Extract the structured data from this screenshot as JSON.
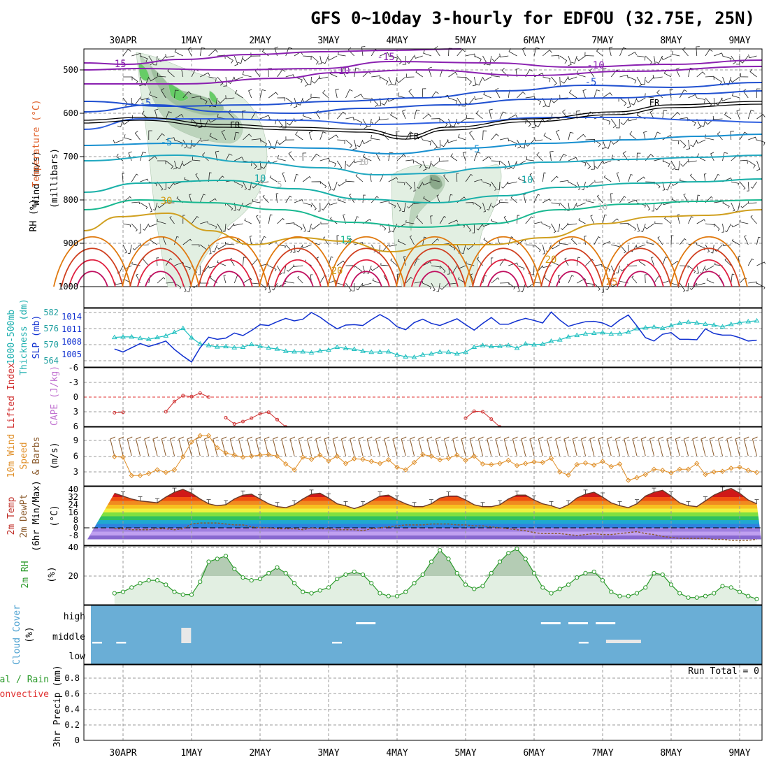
{
  "header": {
    "title": "GFS 0~10day 3-hourly for EDFOU (32.75E, 25N)"
  },
  "time_axis": {
    "dates": [
      "30APR",
      "1MAY",
      "2MAY",
      "3MAY",
      "4MAY",
      "5MAY",
      "6MAY",
      "7MAY",
      "8MAY",
      "9MAY"
    ]
  },
  "colors": {
    "rh_fill": "#c8dcc8",
    "temp_warm": "#e0202a",
    "temp_cool": "#2050d0",
    "thickness": "#20c0c0",
    "slp": "#1030d0",
    "lifted_index": "#d03030",
    "wind_speed": "#e0902a",
    "rh2m": "#2a9a2a",
    "cloud_bg": "#6aaed6",
    "dewpoint": "#8b5a2b"
  },
  "panels": {
    "upper_air": {
      "y_labels": [
        "Wind (m/s)",
        "Temperature (°C)",
        "RH (%)",
        "(millibars)"
      ],
      "pressure_ticks": [
        "500",
        "600",
        "700",
        "800",
        "900",
        "1000"
      ],
      "contour_labels": [
        "-15",
        "-15",
        "-10",
        "-10",
        "-5",
        "-5",
        "-5",
        "-5",
        "5",
        "5",
        "10",
        "10",
        "10",
        "10",
        "15",
        "20",
        "20",
        "25",
        "30",
        "FR",
        "FR",
        "FR"
      ]
    },
    "thickness_slp": {
      "y_labels": [
        "1000-500mb",
        "Thickness (dm)",
        "SLP (mb)"
      ],
      "thickness_ticks": [
        "582",
        "576",
        "570",
        "564"
      ],
      "slp_ticks": [
        "1014",
        "1011",
        "1008",
        "1005"
      ]
    },
    "stability": {
      "y_labels": [
        "Lifted Index",
        "CAPE (J/kg)"
      ],
      "ticks": [
        "-6",
        "-3",
        "0",
        "3",
        "6"
      ]
    },
    "wind10m": {
      "y_labels": [
        "10m Wind",
        "Speed",
        "& Barbs",
        "(m/s)"
      ],
      "ticks": [
        "9",
        "6",
        "3"
      ]
    },
    "temp2m": {
      "y_labels": [
        "2m Temp",
        "2m DewPt",
        "(6hr Min/Max)",
        "(°C)"
      ],
      "ticks": [
        "40",
        "32",
        "24",
        "16",
        "8",
        "0",
        "-8"
      ]
    },
    "rh2m": {
      "y_labels": [
        "2m RH",
        "(%)"
      ],
      "ticks": [
        "40",
        "20"
      ]
    },
    "cloud": {
      "y_labels": [
        "Cloud Cover",
        "(%)"
      ],
      "ticks": [
        "high",
        "middle",
        "low"
      ]
    },
    "precip": {
      "y_labels": [
        "Total / Rain",
        "Convective",
        "3hr Precip (mm)"
      ],
      "ticks": [
        "0.8",
        "0.6",
        "0.4",
        "0.2",
        "0"
      ],
      "run_total": "Run Total = 0"
    }
  },
  "chart_data": {
    "type": "line",
    "title": "GFS 0~10day 3-hourly for EDFOU (32.75E, 25N)",
    "x_start": "29APR 21Z",
    "x_step_hours": 3,
    "slp_mb": [
      1006.3,
      1005.6,
      1006.6,
      1007.6,
      1006.9,
      1007.5,
      1008.2,
      1006.2,
      1004.6,
      1003.2,
      1006.6,
      1009.1,
      1008.6,
      1008.9,
      1010.1,
      1009.5,
      1010.7,
      1012.1,
      1011.9,
      1012.8,
      1013.6,
      1013.0,
      1013.4,
      1015.0,
      1013.9,
      1012.4,
      1011.1,
      1012.0,
      1012.1,
      1011.9,
      1013.3,
      1014.5,
      1013.4,
      1011.6,
      1010.9,
      1012.6,
      1013.4,
      1012.4,
      1011.9,
      1012.7,
      1013.5,
      1012.1,
      1010.8,
      1012.4,
      1013.8,
      1012.2,
      1012.2,
      1013.0,
      1013.6,
      1013.1,
      1012.5,
      1015.1,
      1013.2,
      1011.7,
      1012.3,
      1012.8,
      1012.9,
      1012.5,
      1011.6,
      1013.2,
      1014.4,
      1011.8,
      1009.0,
      1008.2,
      1009.8,
      1010.2,
      1008.6,
      1008.6,
      1008.5,
      1011.1,
      1010.0,
      1009.6,
      1009.6,
      1009.0,
      1008.2,
      1008.4,
      1007.6,
      1006.6,
      1007.0,
      1008.2
    ],
    "thickness_dm": [
      572.7,
      572.9,
      572.9,
      572.4,
      572.0,
      572.7,
      573.3,
      574.6,
      576.1,
      572.6,
      570.3,
      569.7,
      569.2,
      569.3,
      568.9,
      569.1,
      570.1,
      569.4,
      568.8,
      568.4,
      567.6,
      567.4,
      567.4,
      567.0,
      567.7,
      568.0,
      569.1,
      568.6,
      568.3,
      567.6,
      567.2,
      567.3,
      567.4,
      566.2,
      565.5,
      565.3,
      566.2,
      566.6,
      567.3,
      567.2,
      566.6,
      567.2,
      569.1,
      569.7,
      569.3,
      569.4,
      569.7,
      568.7,
      570.3,
      570.0,
      570.2,
      571.3,
      571.8,
      572.9,
      573.5,
      574.0,
      574.3,
      574.5,
      574.0,
      574.1,
      574.7,
      576.0,
      576.3,
      576.6,
      576.1,
      577.1,
      578.0,
      578.4,
      578.1,
      577.7,
      577.3,
      576.7,
      577.6,
      578.2,
      578.6,
      578.9,
      578.6,
      578.6,
      578.4,
      578.1
    ],
    "wind10m_ms": [
      5.9,
      5.8,
      2.3,
      2.3,
      2.7,
      3.4,
      2.9,
      3.4,
      5.9,
      8.7,
      9.9,
      9.9,
      7.6,
      6.6,
      6.2,
      5.8,
      6.0,
      6.2,
      6.3,
      6.0,
      4.5,
      3.4,
      5.8,
      5.4,
      6.2,
      5.1,
      6.0,
      4.6,
      5.5,
      5.4,
      5.0,
      4.6,
      5.3,
      3.9,
      3.4,
      4.8,
      6.3,
      6.0,
      5.3,
      5.6,
      6.2,
      5.2,
      6.0,
      4.5,
      4.4,
      4.6,
      5.2,
      4.2,
      4.6,
      4.9,
      4.8,
      5.6,
      3.0,
      2.4,
      4.4,
      4.7,
      4.3,
      5.0,
      4.0,
      4.5,
      1.4,
      1.9,
      2.5,
      3.5,
      3.3,
      2.8,
      3.5,
      3.5,
      4.6,
      2.5,
      3.0,
      3.1,
      3.7,
      3.9,
      3.3,
      2.9,
      2.8,
      2.4,
      2.3,
      3.0
    ],
    "temp2m_c": [
      36,
      33,
      30,
      28,
      27,
      26,
      32,
      37,
      40,
      36,
      30,
      25,
      23,
      24,
      30,
      34,
      35,
      30,
      25,
      22,
      21,
      24,
      30,
      35,
      36,
      31,
      25,
      23,
      20,
      23,
      28,
      33,
      34,
      29,
      25,
      22,
      22,
      25,
      31,
      33,
      33,
      29,
      24,
      22,
      22,
      24,
      30,
      34,
      34,
      29,
      25,
      23,
      20,
      24,
      31,
      35,
      37,
      32,
      26,
      23,
      21,
      25,
      33,
      37,
      39,
      33,
      26,
      23,
      22,
      28,
      34,
      38,
      41,
      36,
      29,
      25,
      25,
      28,
      33,
      35
    ],
    "dewpt2m_c": [
      -1,
      -1,
      -2,
      -2,
      -2,
      -1,
      -1,
      -2,
      -1,
      4,
      5,
      5,
      5,
      4,
      3,
      3,
      1,
      0,
      0,
      -1,
      -1,
      -1,
      -2,
      0,
      -1,
      -1,
      -2,
      -2,
      -2,
      -3,
      -1,
      0,
      1,
      2,
      3,
      3,
      3,
      4,
      4,
      4,
      3,
      3,
      2,
      2,
      1,
      0,
      -1,
      -2,
      -3,
      -5,
      -6,
      -6,
      -6,
      -7,
      -8,
      -7,
      -6,
      -7,
      -7,
      -6,
      -5,
      -4,
      -6,
      -7,
      -9,
      -10,
      -11,
      -11,
      -11,
      -11,
      -12,
      -12,
      -13,
      -13,
      -13,
      -12,
      -12,
      -11,
      -11,
      -11
    ],
    "rh2m_pct": [
      8,
      9,
      12,
      15,
      17,
      17,
      14,
      9,
      7,
      7,
      16,
      30,
      32,
      34,
      25,
      19,
      17,
      18,
      22,
      26,
      22,
      15,
      9,
      8,
      10,
      12,
      18,
      21,
      23,
      21,
      15,
      8,
      6,
      6,
      9,
      15,
      21,
      30,
      38,
      32,
      22,
      14,
      11,
      13,
      22,
      30,
      36,
      39,
      32,
      22,
      12,
      8,
      11,
      14,
      19,
      22,
      23,
      17,
      9,
      6,
      6,
      8,
      12,
      22,
      21,
      14,
      8,
      5,
      5,
      6,
      8,
      13,
      12,
      9,
      6,
      4,
      4,
      6,
      8,
      9
    ],
    "lifted_index": [
      3.2,
      3.1,
      null,
      null,
      null,
      null,
      3.0,
      0.9,
      -0.3,
      -0.1,
      -0.8,
      0.0,
      null,
      4.2,
      5.5,
      5.0,
      4.3,
      3.4,
      3.1,
      4.6,
      6.1,
      null,
      null,
      null,
      null,
      null,
      null,
      null,
      null,
      null,
      null,
      null,
      null,
      null,
      null,
      null,
      null,
      null,
      null,
      null,
      null,
      4.3,
      2.9,
      3.0,
      4.5,
      6.1,
      null,
      null,
      null,
      null,
      null,
      null,
      null,
      null,
      null,
      null,
      null,
      null,
      null,
      null,
      null,
      null,
      null,
      null,
      null,
      null,
      null,
      null,
      null,
      null,
      null,
      null,
      null,
      null,
      null,
      null,
      null,
      null,
      null,
      null
    ],
    "precip_3hr_mm": [
      0,
      0,
      0,
      0,
      0,
      0,
      0,
      0,
      0,
      0,
      0,
      0,
      0,
      0,
      0,
      0,
      0,
      0,
      0,
      0,
      0,
      0,
      0,
      0,
      0,
      0,
      0,
      0,
      0,
      0,
      0,
      0,
      0,
      0,
      0,
      0,
      0,
      0,
      0,
      0,
      0,
      0,
      0,
      0,
      0,
      0,
      0,
      0,
      0,
      0,
      0,
      0,
      0,
      0,
      0,
      0,
      0,
      0,
      0,
      0,
      0,
      0,
      0,
      0,
      0,
      0,
      0,
      0,
      0,
      0,
      0,
      0,
      0,
      0,
      0,
      0,
      0,
      0,
      0,
      0
    ],
    "cloud_cover": {
      "high_days": [
        3.4,
        6.1,
        6.5,
        6.9
      ],
      "middle_days": [
        0.85
      ],
      "low_days": [
        0,
        0.35,
        3.5,
        7.1
      ]
    },
    "temperature_contours_c": [
      -15,
      -10,
      -5,
      5,
      10,
      15,
      20,
      25,
      30
    ],
    "freezing_level_label": "FR",
    "run_total_mm": 0
  }
}
